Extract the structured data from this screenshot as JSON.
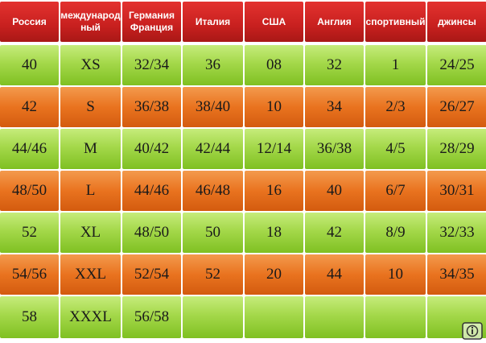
{
  "headers": [
    "Россия",
    "международ ный",
    "Германия Франция",
    "Италия",
    "США",
    "Англия",
    "спортивный",
    "джинсы"
  ],
  "rows": [
    [
      "40",
      "XS",
      "32/34",
      "36",
      "08",
      "32",
      "1",
      "24/25"
    ],
    [
      "42",
      "S",
      "36/38",
      "38/40",
      "10",
      "34",
      "2/3",
      "26/27"
    ],
    [
      "44/46",
      "M",
      "40/42",
      "42/44",
      "12/14",
      "36/38",
      "4/5",
      "28/29"
    ],
    [
      "48/50",
      "L",
      "44/46",
      "46/48",
      "16",
      "40",
      "6/7",
      "30/31"
    ],
    [
      "52",
      "XL",
      "48/50",
      "50",
      "18",
      "42",
      "8/9",
      "32/33"
    ],
    [
      "54/56",
      "XXL",
      "52/54",
      "52",
      "20",
      "44",
      "10",
      "34/35"
    ],
    [
      "58",
      "XXXL",
      "56/58",
      "",
      "",
      "",
      "",
      ""
    ]
  ],
  "row_colors": [
    "green",
    "orange",
    "green",
    "orange",
    "green",
    "orange",
    "green"
  ],
  "colors": {
    "header": "#c8201f",
    "green": "#9fd446",
    "orange": "#e9731f",
    "text": "#1a1a1a"
  },
  "watermark_icon": "info-icon"
}
